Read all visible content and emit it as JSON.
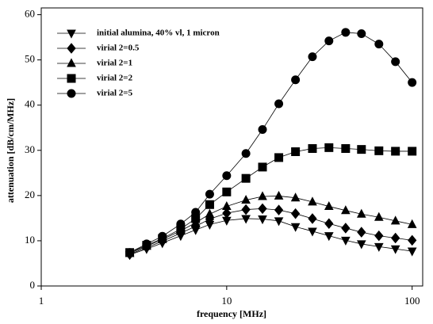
{
  "chart_data": {
    "type": "line",
    "x_label": "frequency [MHz]",
    "y_label": "attenuation [dB/cm/MHz]",
    "log_x": true,
    "xlim": [
      1,
      114
    ],
    "xticks": [
      1,
      10,
      100
    ],
    "ylim": [
      0,
      61.5
    ],
    "yticks": [
      0,
      10,
      20,
      30,
      40,
      50,
      60
    ],
    "x": [
      3,
      3.7,
      4.5,
      5.65,
      6.8,
      8.1,
      10,
      12.7,
      15.6,
      19.1,
      23.5,
      29,
      35.6,
      43.8,
      53.3,
      66.2,
      81.3,
      100
    ],
    "legend": "upper left",
    "series": [
      {
        "name": "initial alumina, 40% vl, 1 micron",
        "color": "#000000",
        "marker": "triangle-down",
        "values": [
          6.9,
          8.2,
          9.5,
          11.1,
          12.4,
          13.6,
          14.5,
          14.9,
          14.8,
          14.4,
          13.1,
          12.1,
          11.1,
          10.1,
          9.3,
          8.7,
          8.2,
          7.7
        ]
      },
      {
        "name": "virial 2=0.5",
        "color": "#000000",
        "marker": "diamond",
        "values": [
          7.0,
          8.5,
          9.9,
          11.7,
          13.2,
          14.8,
          16.1,
          16.9,
          17.1,
          16.8,
          16.0,
          14.9,
          13.8,
          12.8,
          11.9,
          11.1,
          10.6,
          10.1
        ]
      },
      {
        "name": "virial 2=1",
        "color": "#000000",
        "marker": "triangle-up",
        "values": [
          7.2,
          8.8,
          10.3,
          12.2,
          14.0,
          15.9,
          17.6,
          19.0,
          19.8,
          19.9,
          19.5,
          18.6,
          17.6,
          16.7,
          15.9,
          15.2,
          14.4,
          13.6
        ]
      },
      {
        "name": "virial 2=2",
        "color": "#000000",
        "marker": "square",
        "values": [
          7.4,
          9.0,
          10.5,
          12.6,
          14.9,
          18.0,
          20.8,
          23.8,
          26.3,
          28.4,
          29.7,
          30.4,
          30.6,
          30.4,
          30.2,
          29.9,
          29.8,
          29.8
        ]
      },
      {
        "name": "virial 2=5",
        "color": "#000000",
        "marker": "circle",
        "values": [
          7.4,
          9.3,
          11.0,
          13.7,
          16.3,
          20.3,
          24.4,
          29.3,
          34.6,
          40.3,
          45.6,
          50.7,
          54.2,
          56.1,
          55.8,
          53.5,
          49.6,
          45.0
        ]
      }
    ]
  }
}
